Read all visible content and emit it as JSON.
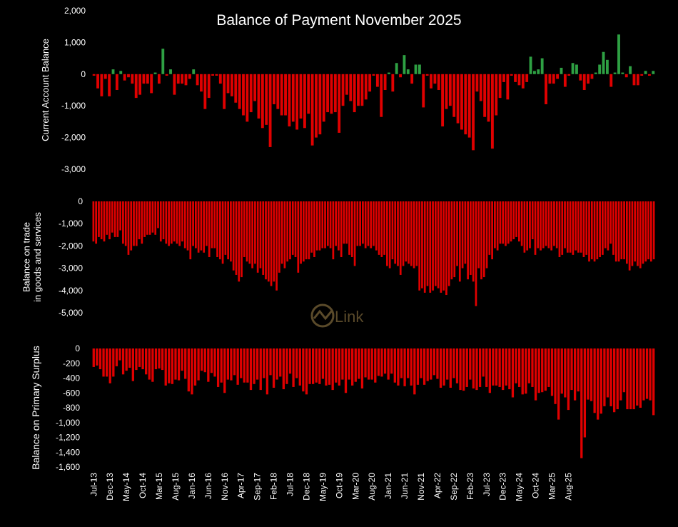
{
  "title": "Balance of Payment November 2025",
  "watermark": "Link",
  "colors": {
    "positive": "#2ea043",
    "negative": "#e00000",
    "background": "#000000",
    "text": "#ffffff"
  },
  "x_tick_labels": [
    "Jul-13",
    "Dec-13",
    "May-14",
    "Oct-14",
    "Mar-15",
    "Aug-15",
    "Jan-16",
    "Jun-16",
    "Nov-16",
    "Apr-17",
    "Sep-17",
    "Feb-18",
    "Jul-18",
    "Dec-18",
    "May-19",
    "Oct-19",
    "Mar-20",
    "Aug-20",
    "Jan-21",
    "Jun-21",
    "Nov-21",
    "Apr-22",
    "Sep-22",
    "Feb-23",
    "Jul-23",
    "Dec-23",
    "May-24",
    "Oct-24",
    "Mar-25",
    "Aug-25"
  ],
  "chart_data": [
    {
      "type": "bar",
      "ylabel": "Current Account Balance",
      "ylim": [
        -3000,
        2000
      ],
      "yticks": [
        2000,
        1000,
        0,
        -1000,
        -2000,
        -3000
      ],
      "ytick_labels": [
        "2,000",
        "1,000",
        "0",
        "-1,000",
        "-2,000",
        "-3,000"
      ],
      "x_start": "Jul-13",
      "x_end": "Nov-25",
      "values": [
        -50,
        -450,
        -700,
        -150,
        -700,
        150,
        -500,
        100,
        -200,
        -100,
        -300,
        -750,
        -650,
        -300,
        -300,
        -600,
        50,
        -300,
        800,
        -50,
        150,
        -650,
        -300,
        -300,
        -350,
        -150,
        150,
        -350,
        -550,
        -1100,
        -750,
        -50,
        -50,
        -300,
        -1100,
        -600,
        -700,
        -900,
        -1100,
        -1300,
        -1500,
        -1200,
        -850,
        -1400,
        -1700,
        -1600,
        -2300,
        -950,
        -1100,
        -1300,
        -1300,
        -1650,
        -1500,
        -1750,
        -1400,
        -1700,
        -1250,
        -2250,
        -2000,
        -1900,
        -1500,
        -1200,
        -1250,
        -1200,
        -1850,
        -1000,
        -650,
        -850,
        -1200,
        -1000,
        -1000,
        -800,
        -550,
        -50,
        -400,
        -1350,
        -500,
        50,
        -550,
        350,
        -100,
        600,
        150,
        -300,
        300,
        300,
        -1050,
        -50,
        -450,
        -300,
        -500,
        -1650,
        -1100,
        -1000,
        -1350,
        -1550,
        -1750,
        -1900,
        -2000,
        -2400,
        -550,
        -850,
        -1350,
        -1500,
        -2350,
        -1300,
        -750,
        -250,
        -800,
        -50,
        -250,
        -350,
        -450,
        -250,
        550,
        100,
        150,
        500,
        -950,
        -300,
        -300,
        -150,
        200,
        -400,
        -50,
        350,
        300,
        -200,
        -500,
        -300,
        -150,
        50,
        300,
        700,
        450,
        -400,
        50,
        1250,
        50,
        -100,
        250,
        -350,
        -350,
        -50,
        100,
        -50,
        100
      ]
    },
    {
      "type": "bar",
      "ylabel": "Balance on trade in goods and services",
      "ylim": [
        -5000,
        0
      ],
      "yticks": [
        0,
        -1000,
        -2000,
        -3000,
        -4000,
        -5000
      ],
      "ytick_labels": [
        "0",
        "-1,000",
        "-2,000",
        "-3,000",
        "-4,000",
        "-5,000"
      ],
      "x_start": "Jul-13",
      "x_end": "Nov-25",
      "values": [
        -1800,
        -1900,
        -1600,
        -1700,
        -1800,
        -1500,
        -1700,
        -1400,
        -1600,
        -1600,
        -1300,
        -1900,
        -2000,
        -2400,
        -2200,
        -2000,
        -2000,
        -1700,
        -1900,
        -1600,
        -1500,
        -1500,
        -1400,
        -1500,
        -1200,
        -1800,
        -1700,
        -1900,
        -2000,
        -1900,
        -1800,
        -1900,
        -2000,
        -1800,
        -2100,
        -2200,
        -2600,
        -2000,
        -2100,
        -2300,
        -2200,
        -2300,
        -2000,
        -2500,
        -2100,
        -2100,
        -2500,
        -2600,
        -2800,
        -2400,
        -2600,
        -2700,
        -3100,
        -3300,
        -3600,
        -3400,
        -2500,
        -2700,
        -2800,
        -3000,
        -2800,
        -3200,
        -3000,
        -3300,
        -3500,
        -3600,
        -3800,
        -3600,
        -4000,
        -3200,
        -2800,
        -3000,
        -2700,
        -2600,
        -2400,
        -2500,
        -3200,
        -2800,
        -2700,
        -2600,
        -2600,
        -2300,
        -2500,
        -2200,
        -2200,
        -2100,
        -2100,
        -2000,
        -2100,
        -2600,
        -2000,
        -2200,
        -2500,
        -1900,
        -1900,
        -2400,
        -2500,
        -2900,
        -2000,
        -2000,
        -1900,
        -2100,
        -2000,
        -2100,
        -2000,
        -2200,
        -2400,
        -2500,
        -2400,
        -2900,
        -3000,
        -2600,
        -2800,
        -2900,
        -3300,
        -2900,
        -2700,
        -2800,
        -2900,
        -3000,
        -2900,
        -4000,
        -3900,
        -4100,
        -3800,
        -4100,
        -4000,
        -3800,
        -3900,
        -4100,
        -4000,
        -4200,
        -3800,
        -3500,
        -3400,
        -2900,
        -3600,
        -3000,
        -2800,
        -3500,
        -3300,
        -3600,
        -4700,
        -3000,
        -3500,
        -3400,
        -3000,
        -2400,
        -2600,
        -2100,
        -2200,
        -1900,
        -1900,
        -2000,
        -1900,
        -1800,
        -1700,
        -1600,
        -1800,
        -2000,
        -2300,
        -2200,
        -2100,
        -1700,
        -2400,
        -2100,
        -2200,
        -2100,
        -2000,
        -2100,
        -2200,
        -2000,
        -2100,
        -2500,
        -2400,
        -2100,
        -2300,
        -2300,
        -2400,
        -2200,
        -2300,
        -2300,
        -2500,
        -2400,
        -2700,
        -2600,
        -2700,
        -2600,
        -2500,
        -2400,
        -2100,
        -2200,
        -1900,
        -2400,
        -2700,
        -2700,
        -2600,
        -2600,
        -2800,
        -3100,
        -2900,
        -2700,
        -2900,
        -3000,
        -2800,
        -2700,
        -2600,
        -2700,
        -2600
      ]
    },
    {
      "type": "bar",
      "ylabel": "Balance on Primary Surplus",
      "ylim": [
        -1600,
        0
      ],
      "yticks": [
        0,
        -200,
        -400,
        -600,
        -800,
        -1000,
        -1200,
        -1400,
        -1600
      ],
      "ytick_labels": [
        "0",
        "-200",
        "-400",
        "-600",
        "-800",
        "-1,000",
        "-1,200",
        "-1,400",
        "-1,600"
      ],
      "x_start": "Jul-13",
      "x_end": "Nov-25",
      "values": [
        -250,
        -230,
        -280,
        -380,
        -380,
        -470,
        -380,
        -240,
        -160,
        -350,
        -300,
        -260,
        -440,
        -290,
        -250,
        -280,
        -350,
        -420,
        -450,
        -280,
        -270,
        -290,
        -500,
        -470,
        -480,
        -420,
        -430,
        -300,
        -410,
        -580,
        -620,
        -500,
        -430,
        -300,
        -320,
        -450,
        -330,
        -380,
        -520,
        -460,
        -600,
        -420,
        -430,
        -360,
        -490,
        -400,
        -460,
        -460,
        -560,
        -480,
        -420,
        -560,
        -400,
        -620,
        -360,
        -530,
        -420,
        -380,
        -550,
        -480,
        -340,
        -520,
        -400,
        -500,
        -580,
        -620,
        -480,
        -480,
        -460,
        -480,
        -410,
        -500,
        -490,
        -560,
        -460,
        -500,
        -420,
        -600,
        -420,
        -500,
        -450,
        -410,
        -540,
        -390,
        -420,
        -420,
        -460,
        -370,
        -380,
        -340,
        -420,
        -340,
        -460,
        -500,
        -400,
        -510,
        -400,
        -500,
        -620,
        -490,
        -400,
        -490,
        -440,
        -420,
        -360,
        -410,
        -530,
        -500,
        -420,
        -530,
        -400,
        -470,
        -560,
        -570,
        -520,
        -420,
        -540,
        -560,
        -520,
        -380,
        -520,
        -600,
        -500,
        -500,
        -520,
        -560,
        -500,
        -550,
        -660,
        -470,
        -520,
        -620,
        -610,
        -470,
        -520,
        -700,
        -600,
        -590,
        -570,
        -520,
        -640,
        -750,
        -960,
        -610,
        -660,
        -830,
        -560,
        -700,
        -580,
        -1480,
        -1200,
        -690,
        -710,
        -870,
        -960,
        -880,
        -780,
        -660,
        -780,
        -860,
        -820,
        -700,
        -590,
        -820,
        -820,
        -820,
        -770,
        -800,
        -700,
        -680,
        -700,
        -900
      ]
    }
  ]
}
